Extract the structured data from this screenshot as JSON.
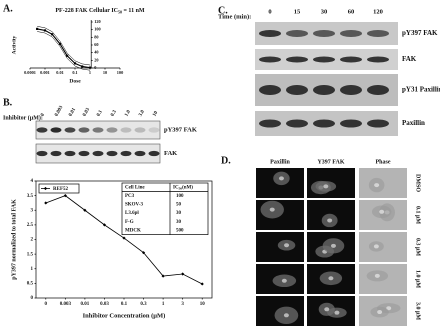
{
  "chart_data": [
    {
      "type": "line",
      "panel": "A.",
      "title": [
        "PF-228 FAK Cellular IC",
        "50",
        "= 11 nM"
      ],
      "x_label": "Dose",
      "y_label": "Activity",
      "xscale": "log",
      "xlim": [
        0.0001,
        100
      ],
      "xticks": [
        0.0001,
        0.001,
        0.01,
        0.1,
        1,
        10,
        100
      ],
      "ylim": [
        0,
        120
      ],
      "yticks": [
        0,
        20,
        40,
        60,
        80,
        100,
        120
      ],
      "x": [
        0.0003,
        0.001,
        0.003,
        0.01,
        0.03,
        0.1,
        0.3,
        1
      ],
      "series": [
        {
          "color": "#000000",
          "values": [
            102,
            98,
            88,
            63,
            32,
            12,
            4,
            1
          ]
        }
      ]
    },
    {
      "type": "line",
      "panel": "B.",
      "x_label": "Inhibitor Concentration (µM)",
      "y_label": "pY397 normalized to total FAK",
      "categories": [
        "0",
        "0.003",
        "0.01",
        "0.03",
        "0.1",
        "0.3",
        "1",
        "3",
        "10"
      ],
      "ylim": [
        0,
        4
      ],
      "yticks": [
        0,
        0.5,
        1,
        1.5,
        2,
        2.5,
        3,
        3.5,
        4
      ],
      "legend": "top-left",
      "series": [
        {
          "name": "REF52",
          "color": "#000000",
          "values": [
            3.25,
            3.5,
            3.0,
            2.5,
            2.05,
            1.55,
            0.75,
            0.82,
            0.48
          ]
        }
      ],
      "inset_table": {
        "header": [
          "Cell Line",
          [
            "IC",
            "50",
            "(nM)"
          ]
        ],
        "rows": [
          [
            "PC3",
            100
          ],
          [
            "SKOV-3",
            50
          ],
          [
            "L3.6pl",
            30
          ],
          [
            "F-G",
            30
          ],
          [
            "MDCK",
            500
          ]
        ]
      }
    }
  ],
  "blot_b": {
    "label": "Inhibitor (µM):",
    "lanes": [
      "0",
      "0.003",
      "0.01",
      "0.03",
      "0.1",
      "0.3",
      "1.0",
      "3.0",
      "10"
    ],
    "bands": [
      "pY397 FAK",
      "FAK"
    ]
  },
  "blot_c": {
    "panel": "C.",
    "label": "Time (min):",
    "lanes": [
      "0",
      "15",
      "30",
      "60",
      "120"
    ],
    "bands": [
      "pY397 FAK",
      "FAK",
      "pY31 Paxillin",
      "Paxillin"
    ]
  },
  "microscopy_d": {
    "panel": "D.",
    "columns": [
      "Paxillin",
      "Y397 FAK",
      "Phase"
    ],
    "rows": [
      "DMSO",
      "0.1 µM",
      "0.3 µM",
      "1.0 µM",
      "3.0 µM"
    ]
  }
}
